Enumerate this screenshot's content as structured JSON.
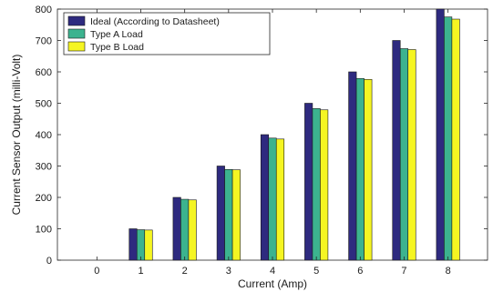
{
  "chart_data": {
    "type": "bar",
    "xlabel": "Current (Amp)",
    "ylabel": "Current Sensor Output (milli-Volt)",
    "categories": [
      "0",
      "1",
      "2",
      "3",
      "4",
      "5",
      "6",
      "7",
      "8"
    ],
    "series": [
      {
        "name": "Ideal (According to Datasheet)",
        "color": "#2e2a7f",
        "values": [
          0,
          100,
          200,
          300,
          400,
          500,
          600,
          700,
          800
        ]
      },
      {
        "name": "Type A Load",
        "color": "#3cb38f",
        "values": [
          0,
          97,
          194,
          289,
          389,
          483,
          579,
          674,
          775
        ]
      },
      {
        "name": "Type B Load",
        "color": "#f5f522",
        "values": [
          0,
          96,
          192,
          288,
          386,
          479,
          576,
          671,
          768
        ]
      }
    ],
    "ylim": [
      0,
      800
    ],
    "yticks": [
      0,
      100,
      200,
      300,
      400,
      500,
      600,
      700,
      800
    ],
    "grid": false,
    "legend_position": "top-left"
  }
}
